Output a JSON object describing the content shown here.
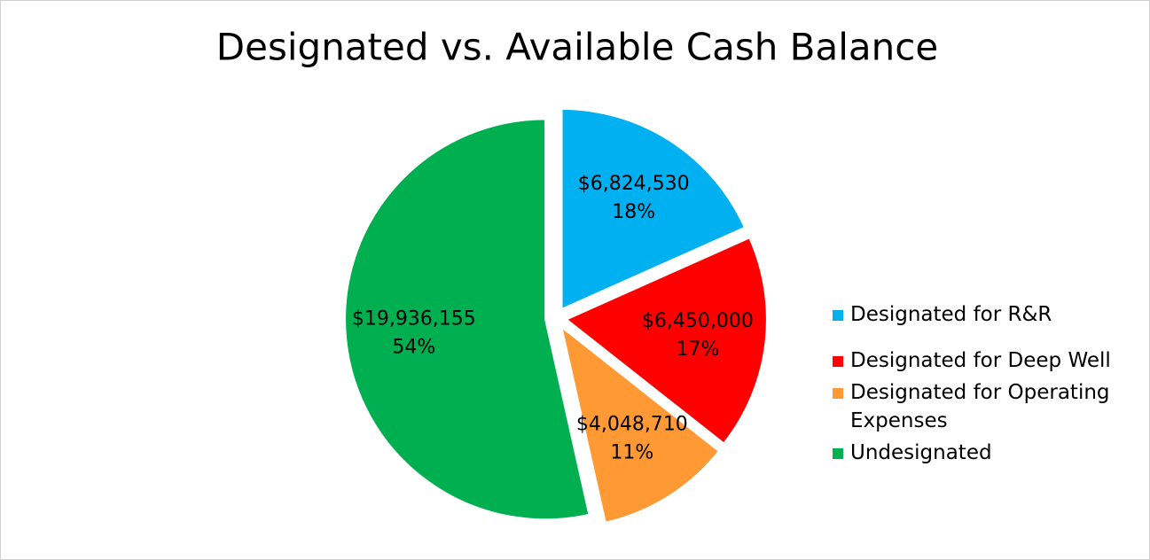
{
  "chart_data": {
    "type": "pie",
    "title": "Designated vs. Available Cash Balance",
    "categories": [
      "Designated for R&R",
      "Designated for Deep Well",
      "Designated for Operating Expenses",
      "Undesignated"
    ],
    "values": [
      6824530,
      6450000,
      4048710,
      19936155
    ],
    "value_labels": [
      "$6,824,530",
      "$6,450,000",
      "$4,048,710",
      "$19,936,155"
    ],
    "percents": [
      18,
      17,
      11,
      54
    ],
    "percent_labels": [
      "18%",
      "17%",
      "11%",
      "54%"
    ],
    "colors": [
      "#00b0f0",
      "#ff0000",
      "#ff9933",
      "#00b050"
    ],
    "legend": "right"
  }
}
